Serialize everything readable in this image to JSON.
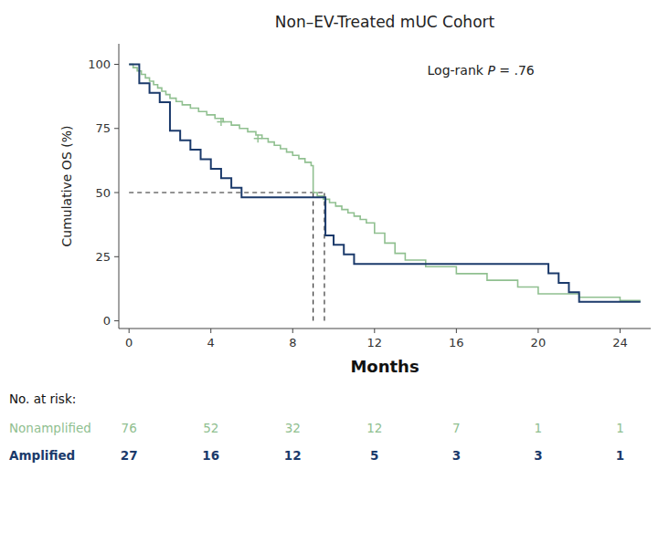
{
  "chart_data": {
    "type": "step",
    "title": "Non–EV-Treated mUC Cohort",
    "xlabel": "Months",
    "ylabel": "Cumulative OS (%)",
    "xlim": [
      -0.5,
      25.5
    ],
    "ylim": [
      -3,
      108
    ],
    "xticks": [
      0,
      4,
      8,
      12,
      16,
      20,
      24
    ],
    "yticks": [
      0,
      25,
      50,
      75,
      100
    ],
    "grid": false,
    "series": [
      {
        "name": "Nonamplified",
        "color": "#90C090",
        "line_style": "step",
        "x": [
          0.0,
          0.2,
          0.4,
          0.6,
          0.8,
          1.0,
          1.2,
          1.4,
          1.6,
          1.8,
          2.0,
          2.3,
          2.6,
          3.0,
          3.4,
          3.8,
          4.2,
          4.6,
          5.0,
          5.4,
          5.8,
          6.2,
          6.5,
          6.8,
          7.1,
          7.4,
          7.7,
          8.0,
          8.3,
          8.6,
          8.9,
          9.0,
          9.2,
          9.5,
          9.8,
          10.1,
          10.4,
          10.7,
          11.0,
          11.3,
          11.6,
          12.0,
          12.5,
          13.0,
          13.5,
          14.5,
          16.0,
          17.5,
          19.0,
          20.0,
          22.0,
          24.0,
          25.0
        ],
        "values": [
          100,
          98.7,
          97.4,
          96.1,
          94.7,
          93.4,
          92.1,
          90.8,
          89.5,
          88.2,
          86.8,
          85.5,
          84.2,
          82.9,
          81.6,
          80.3,
          78.9,
          77.6,
          76.3,
          75.0,
          73.7,
          72.4,
          71.1,
          69.7,
          68.4,
          67.1,
          65.8,
          64.5,
          63.2,
          61.8,
          60.5,
          50.0,
          48.7,
          47.4,
          46.1,
          44.7,
          43.4,
          42.1,
          40.8,
          39.5,
          38.2,
          34.2,
          30.3,
          26.3,
          23.7,
          21.1,
          18.4,
          15.8,
          13.2,
          10.5,
          9.2,
          7.9,
          7.9
        ],
        "censor_x": [
          4.5,
          6.3
        ],
        "censor_values": [
          77.6,
          71.1
        ],
        "marker": "plus"
      },
      {
        "name": "Amplified",
        "color": "#1B3A6B",
        "line_style": "step",
        "x": [
          0.0,
          0.5,
          1.0,
          1.5,
          2.0,
          2.5,
          3.0,
          3.5,
          4.0,
          4.5,
          5.0,
          5.5,
          6.0,
          7.0,
          8.0,
          9.5,
          9.6,
          10.0,
          10.5,
          11.0,
          12.0,
          13.0,
          14.0,
          15.0,
          16.0,
          17.0,
          18.0,
          19.0,
          20.0,
          20.5,
          21.0,
          21.5,
          22.0,
          24.0,
          25.0
        ],
        "values": [
          100,
          92.6,
          88.9,
          85.2,
          74.1,
          70.4,
          66.7,
          63.0,
          59.3,
          55.6,
          51.9,
          48.1,
          48.1,
          48.1,
          48.1,
          48.1,
          33.3,
          29.6,
          25.9,
          22.2,
          22.2,
          22.2,
          22.2,
          22.2,
          22.2,
          22.2,
          22.2,
          22.2,
          22.2,
          18.5,
          14.8,
          11.1,
          7.4,
          7.4,
          7.4
        ]
      }
    ],
    "median_lines": {
      "x": [
        9.0,
        9.55
      ],
      "y": 50,
      "x_start": 0,
      "y_start": 0
    },
    "annotation": {
      "parts": [
        "Log-rank ",
        "P",
        " = .76"
      ]
    },
    "at_risk": {
      "label": "No. at risk:",
      "times": [
        0,
        4,
        8,
        12,
        16,
        20,
        24
      ],
      "counts": [
        [
          76,
          52,
          32,
          12,
          7,
          1,
          1
        ],
        [
          27,
          16,
          12,
          5,
          3,
          3,
          1
        ]
      ]
    }
  }
}
